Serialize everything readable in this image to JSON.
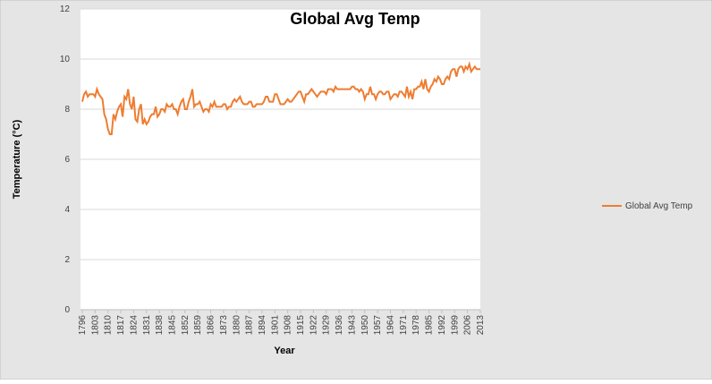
{
  "chart_data": {
    "type": "line",
    "title": "Global Avg Temp",
    "x_label": "Year",
    "y_label": "Temperature (°C)",
    "x": [
      1796,
      1797,
      1798,
      1799,
      1800,
      1801,
      1802,
      1803,
      1804,
      1805,
      1806,
      1807,
      1808,
      1809,
      1810,
      1811,
      1812,
      1813,
      1814,
      1815,
      1816,
      1817,
      1818,
      1819,
      1820,
      1821,
      1822,
      1823,
      1824,
      1825,
      1826,
      1827,
      1828,
      1829,
      1830,
      1831,
      1832,
      1833,
      1834,
      1835,
      1836,
      1837,
      1838,
      1839,
      1840,
      1841,
      1842,
      1843,
      1844,
      1845,
      1846,
      1847,
      1848,
      1849,
      1850,
      1851,
      1852,
      1853,
      1854,
      1855,
      1856,
      1857,
      1858,
      1859,
      1860,
      1861,
      1862,
      1863,
      1864,
      1865,
      1866,
      1867,
      1868,
      1869,
      1870,
      1871,
      1872,
      1873,
      1874,
      1875,
      1876,
      1877,
      1878,
      1879,
      1880,
      1881,
      1882,
      1883,
      1884,
      1885,
      1886,
      1887,
      1888,
      1889,
      1890,
      1891,
      1892,
      1893,
      1894,
      1895,
      1896,
      1897,
      1898,
      1899,
      1900,
      1901,
      1902,
      1903,
      1904,
      1905,
      1906,
      1907,
      1908,
      1909,
      1910,
      1911,
      1912,
      1913,
      1914,
      1915,
      1916,
      1917,
      1918,
      1919,
      1920,
      1921,
      1922,
      1923,
      1924,
      1925,
      1926,
      1927,
      1928,
      1929,
      1930,
      1931,
      1932,
      1933,
      1934,
      1935,
      1936,
      1937,
      1938,
      1939,
      1940,
      1941,
      1942,
      1943,
      1944,
      1945,
      1946,
      1947,
      1948,
      1949,
      1950,
      1951,
      1952,
      1953,
      1954,
      1955,
      1956,
      1957,
      1958,
      1959,
      1960,
      1961,
      1962,
      1963,
      1964,
      1965,
      1966,
      1967,
      1968,
      1969,
      1970,
      1971,
      1972,
      1973,
      1974,
      1975,
      1976,
      1977,
      1978,
      1979,
      1980,
      1981,
      1982,
      1983,
      1984,
      1985,
      1986,
      1987,
      1988,
      1989,
      1990,
      1991,
      1992,
      1993,
      1994,
      1995,
      1996,
      1997,
      1998,
      1999,
      2000,
      2001,
      2002,
      2003,
      2004,
      2005,
      2006,
      2007,
      2008,
      2009,
      2010,
      2011,
      2012,
      2013
    ],
    "series": [
      {
        "name": "Global Avg Temp",
        "color": "#ed7d31",
        "values": [
          8.3,
          8.6,
          8.7,
          8.5,
          8.6,
          8.6,
          8.6,
          8.5,
          8.8,
          8.6,
          8.5,
          8.4,
          7.8,
          7.6,
          7.2,
          7.0,
          7.0,
          7.8,
          7.6,
          7.9,
          8.1,
          8.2,
          7.7,
          8.5,
          8.4,
          8.8,
          8.2,
          8.0,
          8.5,
          7.6,
          7.5,
          8.0,
          8.2,
          7.4,
          7.6,
          7.4,
          7.5,
          7.7,
          7.8,
          7.8,
          8.1,
          7.7,
          7.8,
          8.0,
          8.0,
          7.9,
          8.2,
          8.1,
          8.1,
          8.2,
          8.0,
          8.0,
          7.8,
          8.1,
          8.3,
          8.4,
          8.0,
          8.0,
          8.3,
          8.5,
          8.8,
          8.1,
          8.2,
          8.2,
          8.3,
          8.1,
          7.9,
          8.0,
          8.0,
          7.9,
          8.2,
          8.1,
          8.3,
          8.1,
          8.1,
          8.1,
          8.1,
          8.2,
          8.2,
          8.0,
          8.1,
          8.1,
          8.3,
          8.4,
          8.3,
          8.4,
          8.5,
          8.3,
          8.2,
          8.2,
          8.2,
          8.3,
          8.3,
          8.1,
          8.1,
          8.2,
          8.2,
          8.2,
          8.2,
          8.3,
          8.5,
          8.5,
          8.3,
          8.3,
          8.3,
          8.6,
          8.6,
          8.4,
          8.2,
          8.2,
          8.2,
          8.3,
          8.4,
          8.3,
          8.3,
          8.4,
          8.5,
          8.6,
          8.7,
          8.7,
          8.5,
          8.3,
          8.6,
          8.6,
          8.7,
          8.8,
          8.7,
          8.6,
          8.5,
          8.6,
          8.7,
          8.7,
          8.7,
          8.6,
          8.8,
          8.8,
          8.8,
          8.7,
          8.9,
          8.8,
          8.8,
          8.8,
          8.8,
          8.8,
          8.8,
          8.8,
          8.8,
          8.9,
          8.9,
          8.8,
          8.8,
          8.7,
          8.8,
          8.7,
          8.4,
          8.6,
          8.6,
          8.9,
          8.6,
          8.6,
          8.4,
          8.6,
          8.7,
          8.7,
          8.6,
          8.6,
          8.7,
          8.7,
          8.4,
          8.5,
          8.6,
          8.6,
          8.5,
          8.7,
          8.7,
          8.6,
          8.5,
          8.9,
          8.5,
          8.7,
          8.4,
          8.8,
          8.8,
          8.9,
          8.9,
          9.1,
          8.8,
          9.2,
          8.8,
          8.7,
          8.9,
          9.0,
          9.2,
          9.1,
          9.3,
          9.2,
          9.0,
          9.0,
          9.2,
          9.3,
          9.2,
          9.5,
          9.6,
          9.6,
          9.3,
          9.6,
          9.7,
          9.7,
          9.5,
          9.7,
          9.6,
          9.8,
          9.5,
          9.6,
          9.7,
          9.6,
          9.6,
          9.6
        ]
      }
    ],
    "xlim": [
      1796,
      2013
    ],
    "xticks": [
      1796,
      1803,
      1810,
      1817,
      1824,
      1831,
      1838,
      1845,
      1852,
      1859,
      1866,
      1873,
      1880,
      1887,
      1894,
      1901,
      1908,
      1915,
      1922,
      1929,
      1936,
      1943,
      1950,
      1957,
      1964,
      1971,
      1978,
      1985,
      1992,
      1999,
      2006,
      2013
    ],
    "ylim": [
      0,
      12
    ],
    "yticks": [
      0,
      2,
      4,
      6,
      8,
      10,
      12
    ],
    "grid": true,
    "legend": "right"
  }
}
